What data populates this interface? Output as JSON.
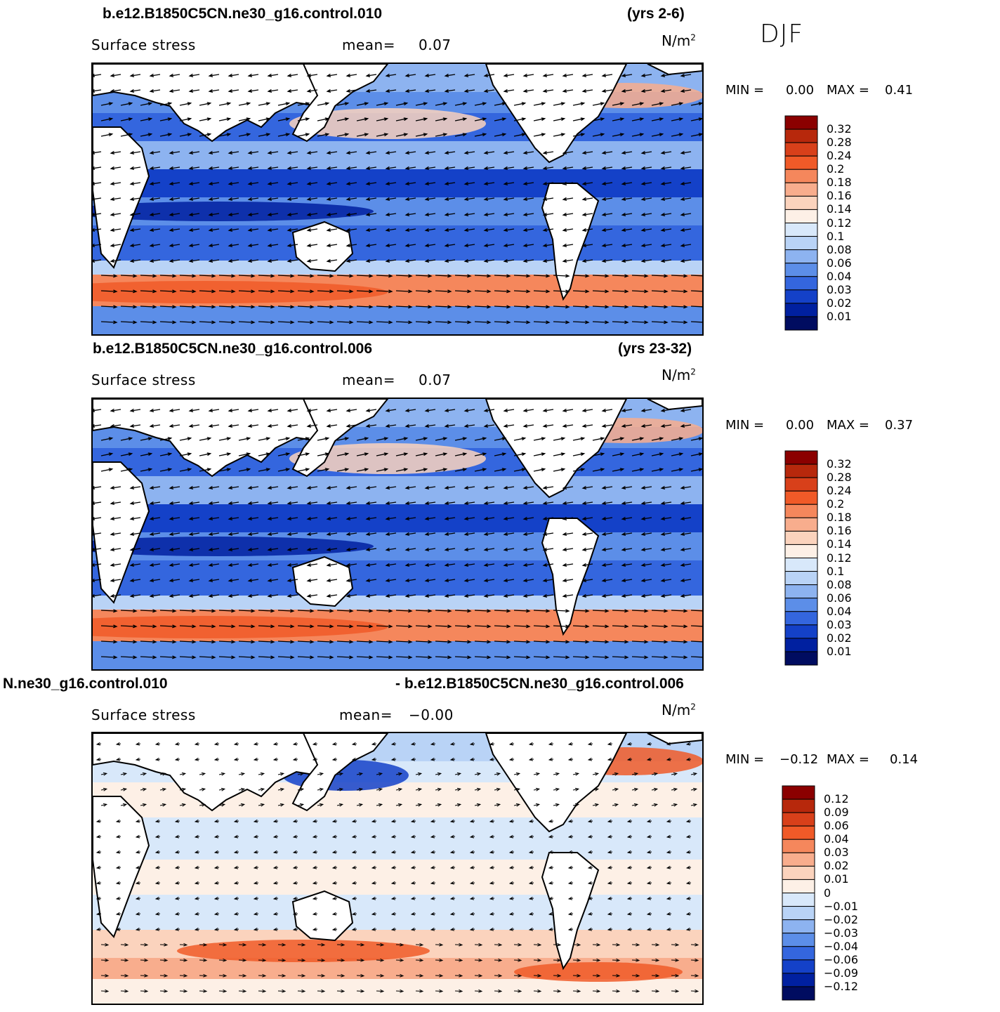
{
  "season": "DJF",
  "panels": [
    {
      "run_title": "b.e12.B1850C5CN.ne30_g16.control.010",
      "years": "(yrs 2-6)",
      "variable": "Surface stress",
      "mean_label": "mean=",
      "mean_value": "0.07",
      "units": "N/m",
      "units_exp": "2",
      "min_label": "MIN =",
      "min_value": "0.00",
      "max_label": "MAX =",
      "max_value": "0.41",
      "colorbar": {
        "labels": [
          "0.32",
          "0.28",
          "0.24",
          "0.2",
          "0.18",
          "0.16",
          "0.14",
          "0.12",
          "0.1",
          "0.08",
          "0.06",
          "0.04",
          "0.03",
          "0.02",
          "0.01"
        ],
        "colors": [
          "#8b0000",
          "#b7280c",
          "#d8401a",
          "#f05a28",
          "#f5875c",
          "#f8ad8d",
          "#fbd3bd",
          "#fdf0e6",
          "#d8e8fa",
          "#b9d3f6",
          "#8db3f0",
          "#5c8ee8",
          "#3466de",
          "#1441c8",
          "#0020a0",
          "#000c60"
        ]
      }
    },
    {
      "run_title": "b.e12.B1850C5CN.ne30_g16.control.006",
      "years": "(yrs 23-32)",
      "variable": "Surface stress",
      "mean_label": "mean=",
      "mean_value": "0.07",
      "units": "N/m",
      "units_exp": "2",
      "min_label": "MIN =",
      "min_value": "0.00",
      "max_label": "MAX =",
      "max_value": "0.37",
      "colorbar": {
        "labels": [
          "0.32",
          "0.28",
          "0.24",
          "0.2",
          "0.18",
          "0.16",
          "0.14",
          "0.12",
          "0.1",
          "0.08",
          "0.06",
          "0.04",
          "0.03",
          "0.02",
          "0.01"
        ],
        "colors": [
          "#8b0000",
          "#b7280c",
          "#d8401a",
          "#f05a28",
          "#f5875c",
          "#f8ad8d",
          "#fbd3bd",
          "#fdf0e6",
          "#d8e8fa",
          "#b9d3f6",
          "#8db3f0",
          "#5c8ee8",
          "#3466de",
          "#1441c8",
          "#0020a0",
          "#000c60"
        ]
      }
    },
    {
      "run_title": "N.ne30_g16.control.010",
      "years": "- b.e12.B1850C5CN.ne30_g16.control.006",
      "variable": "Surface stress",
      "mean_label": "mean=",
      "mean_value": "−0.00",
      "units": "N/m",
      "units_exp": "2",
      "min_label": "MIN =",
      "min_value": "−0.12",
      "max_label": "MAX =",
      "max_value": "0.14",
      "colorbar": {
        "labels": [
          "0.12",
          "0.09",
          "0.06",
          "0.04",
          "0.03",
          "0.02",
          "0.01",
          "0",
          "−0.01",
          "−0.02",
          "−0.03",
          "−0.04",
          "−0.06",
          "−0.09",
          "−0.12"
        ],
        "colors": [
          "#8b0000",
          "#b7280c",
          "#d8401a",
          "#f05a28",
          "#f5875c",
          "#f8ad8d",
          "#fbd3bd",
          "#fdf0e6",
          "#d8e8fa",
          "#b9d3f6",
          "#8db3f0",
          "#5c8ee8",
          "#3466de",
          "#1441c8",
          "#0020a0",
          "#000c60"
        ]
      }
    }
  ]
}
